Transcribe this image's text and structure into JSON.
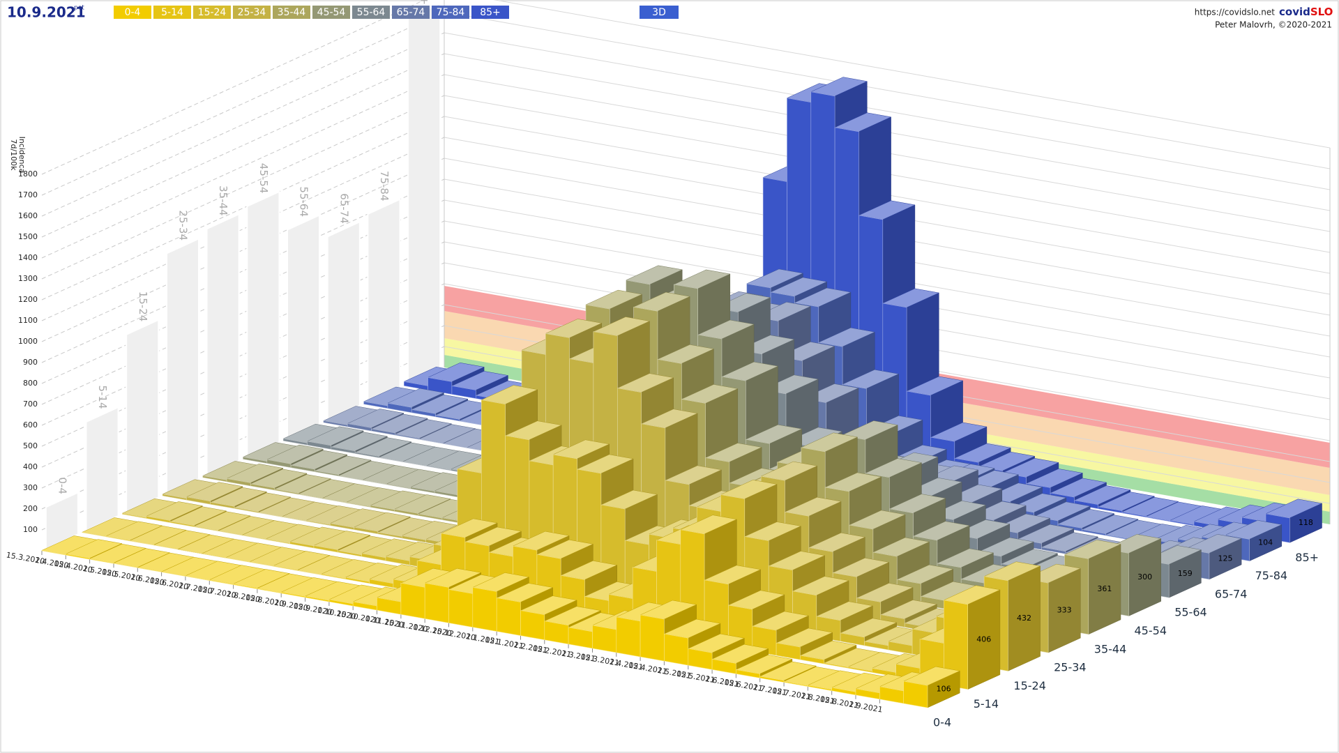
{
  "chart_data": {
    "type": "bar3d",
    "title": "10.9.2021",
    "subtitle": "pet",
    "source": "https://covidslo.net",
    "brand": [
      "covid",
      "SLO"
    ],
    "credit": "Peter Malovrh, ©2020-2021",
    "mode_button": "3D",
    "ylabel": "Incidenca",
    "ylabel_unit": "7d/100k",
    "ylim": [
      0,
      1800
    ],
    "yticks": [
      100,
      200,
      300,
      400,
      500,
      600,
      700,
      800,
      900,
      1000,
      1100,
      1200,
      1300,
      1400,
      1500,
      1600,
      1700,
      1800
    ],
    "categories": [
      "15.3.2020",
      "1.4.2020",
      "15.4.2020",
      "1.5.2020",
      "15.5.2020",
      "1.6.2020",
      "15.6.2020",
      "1.7.2020",
      "15.7.2020",
      "1.8.2020",
      "15.8.2020",
      "1.9.2020",
      "15.9.2020",
      "1.10.2020",
      "15.10.2020",
      "1.11.2020",
      "15.11.2020",
      "1.12.2020",
      "15.12.2020",
      "1.1.2021",
      "15.1.2021",
      "1.2.2021",
      "15.2.2021",
      "1.3.2021",
      "15.3.2021",
      "1.4.2021",
      "15.4.2021",
      "1.5.2021",
      "15.5.2021",
      "1.6.2021",
      "15.6.2021",
      "1.7.2021",
      "15.7.2021",
      "1.8.2021",
      "15.8.2021",
      "1.9.2021",
      null
    ],
    "zones": [
      {
        "from": 0,
        "to": 60,
        "color": "#7fd07f"
      },
      {
        "from": 60,
        "to": 140,
        "color": "#f4f47a"
      },
      {
        "from": 140,
        "to": 270,
        "color": "#f8c890"
      },
      {
        "from": 270,
        "to": 390,
        "color": "#f47a7a"
      }
    ],
    "series": [
      {
        "name": "0-4",
        "color": "#f2cc00",
        "max": 200,
        "values": [
          2,
          5,
          3,
          2,
          1,
          1,
          2,
          3,
          4,
          3,
          5,
          6,
          10,
          20,
          60,
          150,
          170,
          160,
          190,
          160,
          120,
          90,
          80,
          110,
          170,
          200,
          130,
          80,
          50,
          20,
          8,
          4,
          6,
          15,
          30,
          60,
          106
        ]
      },
      {
        "name": "5-14",
        "color": "#e6c414",
        "max": 520,
        "values": [
          1,
          3,
          2,
          1,
          0,
          0,
          1,
          2,
          3,
          2,
          4,
          8,
          20,
          40,
          150,
          300,
          280,
          250,
          300,
          280,
          200,
          120,
          150,
          300,
          450,
          520,
          300,
          200,
          120,
          60,
          20,
          5,
          6,
          20,
          60,
          200,
          406
        ]
      },
      {
        "name": "15-24",
        "color": "#d6bc2c",
        "max": 850,
        "values": [
          4,
          10,
          6,
          3,
          1,
          1,
          3,
          10,
          12,
          8,
          15,
          20,
          40,
          120,
          500,
          850,
          700,
          600,
          650,
          600,
          450,
          300,
          350,
          400,
          520,
          600,
          420,
          300,
          200,
          100,
          40,
          20,
          40,
          120,
          200,
          300,
          432
        ]
      },
      {
        "name": "25-34",
        "color": "#c4b244",
        "max": 1150,
        "values": [
          8,
          15,
          10,
          5,
          2,
          2,
          4,
          10,
          12,
          8,
          12,
          15,
          30,
          90,
          450,
          1000,
          1100,
          1000,
          1150,
          900,
          750,
          500,
          400,
          420,
          520,
          600,
          450,
          300,
          200,
          100,
          40,
          20,
          30,
          90,
          150,
          230,
          333
        ]
      },
      {
        "name": "35-44",
        "color": "#aca65c",
        "max": 1180,
        "values": [
          8,
          15,
          10,
          5,
          2,
          2,
          3,
          8,
          10,
          8,
          10,
          14,
          28,
          80,
          420,
          1000,
          1150,
          1050,
          1180,
          950,
          780,
          520,
          420,
          450,
          560,
          650,
          480,
          320,
          210,
          100,
          40,
          18,
          25,
          80,
          150,
          240,
          361
        ]
      },
      {
        "name": "45-54",
        "color": "#949874",
        "max": 1200,
        "values": [
          10,
          18,
          12,
          6,
          2,
          2,
          3,
          8,
          10,
          8,
          10,
          13,
          25,
          75,
          400,
          1000,
          1180,
          1100,
          1200,
          980,
          800,
          520,
          400,
          430,
          540,
          620,
          460,
          310,
          200,
          90,
          35,
          15,
          20,
          65,
          130,
          210,
          300
        ]
      },
      {
        "name": "55-64",
        "color": "#7c8890",
        "max": 1000,
        "values": [
          10,
          18,
          12,
          6,
          2,
          2,
          3,
          6,
          8,
          6,
          8,
          10,
          20,
          60,
          320,
          850,
          1000,
          950,
          1000,
          820,
          650,
          420,
          300,
          300,
          350,
          380,
          280,
          190,
          120,
          55,
          20,
          10,
          12,
          40,
          80,
          110,
          159
        ]
      },
      {
        "name": "65-74",
        "color": "#6678a8",
        "max": 880,
        "values": [
          8,
          15,
          10,
          5,
          2,
          1,
          2,
          5,
          6,
          5,
          6,
          8,
          15,
          45,
          250,
          700,
          880,
          850,
          870,
          700,
          520,
          330,
          230,
          200,
          220,
          230,
          160,
          100,
          60,
          30,
          12,
          6,
          8,
          25,
          55,
          90,
          125
        ]
      },
      {
        "name": "75-84",
        "color": "#4e68bc",
        "max": 900,
        "values": [
          12,
          25,
          15,
          8,
          2,
          1,
          2,
          4,
          5,
          4,
          5,
          7,
          14,
          40,
          240,
          700,
          900,
          880,
          850,
          680,
          500,
          300,
          180,
          130,
          130,
          120,
          80,
          50,
          30,
          15,
          8,
          4,
          6,
          20,
          45,
          75,
          104
        ]
      },
      {
        "name": "85+",
        "color": "#3a55c8",
        "max": 1750,
        "values": [
          20,
          60,
          40,
          15,
          3,
          1,
          2,
          4,
          5,
          4,
          5,
          8,
          15,
          50,
          400,
          1300,
          1700,
          1750,
          1600,
          1200,
          800,
          400,
          200,
          120,
          100,
          90,
          60,
          35,
          20,
          10,
          5,
          3,
          5,
          20,
          50,
          80,
          118
        ]
      }
    ]
  }
}
